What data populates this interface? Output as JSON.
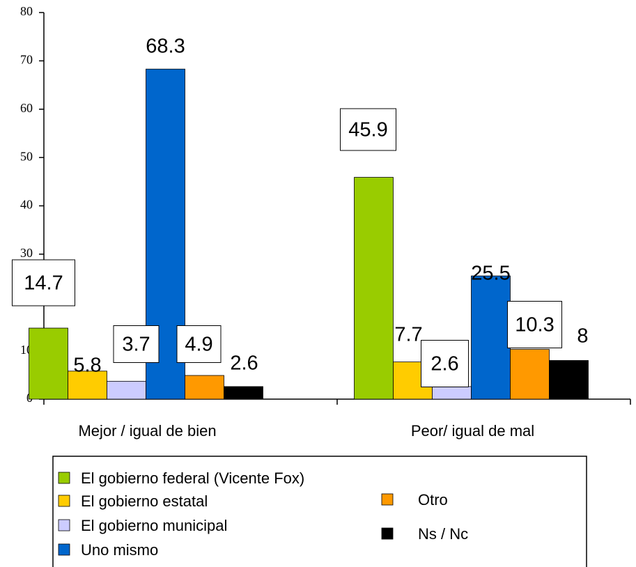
{
  "chart_data": {
    "type": "bar",
    "categories": [
      "Mejor / igual de bien",
      "Peor/ igual de mal"
    ],
    "series": [
      {
        "name": "El gobierno federal (Vicente Fox)",
        "color": "#99cc00",
        "values": [
          14.7,
          45.9
        ]
      },
      {
        "name": "El gobierno estatal",
        "color": "#ffcc00",
        "values": [
          5.8,
          7.7
        ]
      },
      {
        "name": "El gobierno municipal",
        "color": "#ccccff",
        "values": [
          3.7,
          2.6
        ]
      },
      {
        "name": "Uno mismo",
        "color": "#0066cc",
        "values": [
          68.3,
          25.5
        ]
      },
      {
        "name": "Otro",
        "color": "#ff9900",
        "values": [
          4.9,
          10.3
        ]
      },
      {
        "name": "Ns / Nc",
        "color": "#000000",
        "values": [
          2.6,
          8
        ]
      }
    ],
    "ylim": [
      0,
      80
    ],
    "yticks": [
      0,
      10,
      20,
      30,
      40,
      50,
      60,
      70,
      80
    ],
    "grid": false
  }
}
